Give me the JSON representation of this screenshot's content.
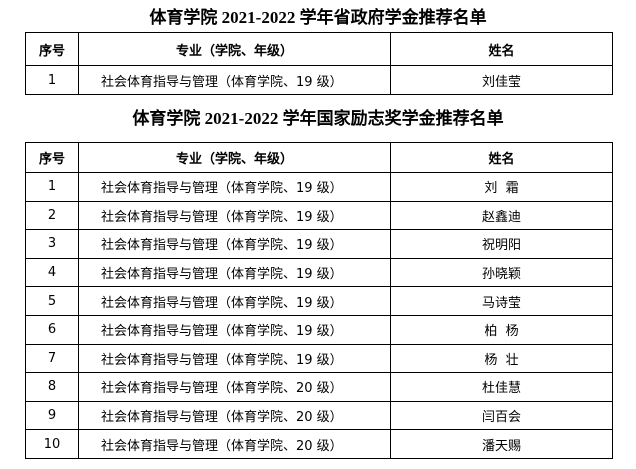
{
  "tables": [
    {
      "title": "体育学院 2021-2022 学年省政府学金推荐名单",
      "columns": [
        "序号",
        "专业（学院、年级）",
        "姓名"
      ],
      "rows": [
        [
          "1",
          "社会体育指导与管理（体育学院、19 级）",
          "刘佳莹"
        ]
      ]
    },
    {
      "title": "体育学院 2021-2022 学年国家励志奖学金推荐名单",
      "columns": [
        "序号",
        "专业（学院、年级）",
        "姓名"
      ],
      "rows": [
        [
          "1",
          "社会体育指导与管理（体育学院、19 级）",
          "刘  霜"
        ],
        [
          "2",
          "社会体育指导与管理（体育学院、19 级）",
          "赵鑫迪"
        ],
        [
          "3",
          "社会体育指导与管理（体育学院、19 级）",
          "祝明阳"
        ],
        [
          "4",
          "社会体育指导与管理（体育学院、19 级）",
          "孙晓颖"
        ],
        [
          "5",
          "社会体育指导与管理（体育学院、19 级）",
          "马诗莹"
        ],
        [
          "6",
          "社会体育指导与管理（体育学院、19 级）",
          "柏  杨"
        ],
        [
          "7",
          "社会体育指导与管理（体育学院、19 级）",
          "杨  壮"
        ],
        [
          "8",
          "社会体育指导与管理（体育学院、20 级）",
          "杜佳慧"
        ],
        [
          "9",
          "社会体育指导与管理（体育学院、20 级）",
          "闫百会"
        ],
        [
          "10",
          "社会体育指导与管理（体育学院、20 级）",
          "潘天赐"
        ]
      ]
    }
  ]
}
